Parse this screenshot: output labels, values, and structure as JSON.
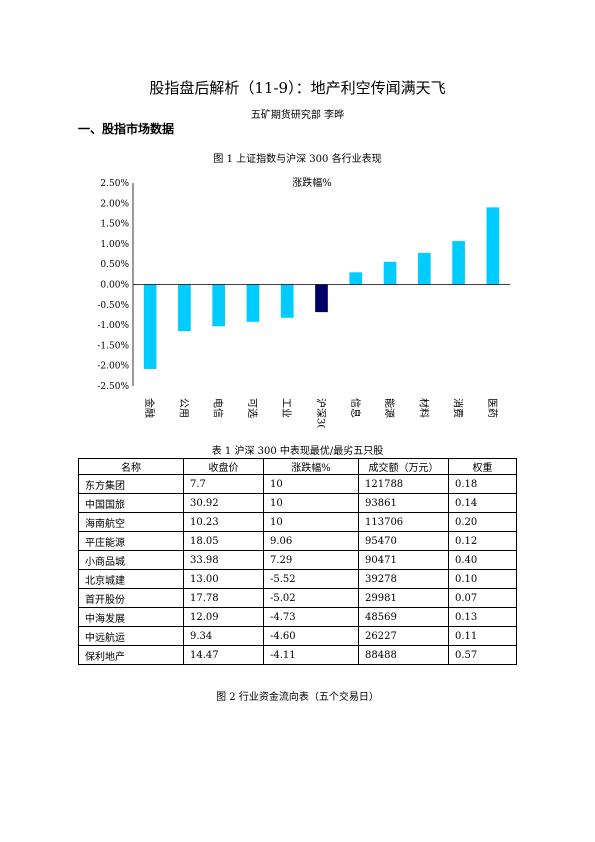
{
  "doc": {
    "title": "股指盘后解析（11-9）：地产利空传闻满天飞",
    "author": "五矿期货研究部    李晔",
    "section1": "一、股指市场数据",
    "figure1_caption": "图 1    上证指数与沪深 300 各行业表现",
    "table1_caption": "表 1    沪深 300 中表现最优/最劣五只股",
    "figure2_caption": "图 2    行业资金流向表（五个交易日）"
  },
  "chart_data": {
    "type": "bar",
    "title": "涨跌幅%",
    "categories": [
      "金融",
      "公用",
      "电信",
      "可选",
      "工业",
      "沪深300",
      "信息",
      "能源",
      "材料",
      "消费",
      "医药"
    ],
    "values": [
      -2.08,
      -1.15,
      -1.03,
      -0.92,
      -0.82,
      -0.68,
      0.3,
      0.56,
      0.78,
      1.07,
      1.9
    ],
    "ylim": [
      -2.5,
      2.5
    ],
    "yticks": [
      "2.50%",
      "2.00%",
      "1.50%",
      "1.00%",
      "0.50%",
      "0.00%",
      "-0.50%",
      "-1.00%",
      "-1.50%",
      "-2.00%",
      "-2.50%"
    ],
    "colors": {
      "default": "#00ccff",
      "highlight": "#000066"
    },
    "highlight_category": "沪深300",
    "grid": false,
    "legend": "none"
  },
  "table": {
    "headers": [
      "名称",
      "收盘价",
      "涨跌幅%",
      "成交额（万元）",
      "权重"
    ],
    "rows": [
      [
        "东方集团",
        "7.7",
        "10",
        "121788",
        "0.18"
      ],
      [
        "中国国旅",
        "30.92",
        "10",
        "93861",
        "0.14"
      ],
      [
        "海南航空",
        "10.23",
        "10",
        "113706",
        "0.20"
      ],
      [
        "平庄能源",
        "18.05",
        "9.06",
        "95470",
        "0.12"
      ],
      [
        "小商品城",
        "33.98",
        "7.29",
        "90471",
        "0.40"
      ],
      [
        "北京城建",
        "13.00",
        "-5.52",
        "39278",
        "0.10"
      ],
      [
        "首开股份",
        "17.78",
        "-5.02",
        "29981",
        "0.07"
      ],
      [
        "中海发展",
        "12.09",
        "-4.73",
        "48569",
        "0.13"
      ],
      [
        "中远航运",
        "9.34",
        "-4.60",
        "26227",
        "0.11"
      ],
      [
        "保利地产",
        "14.47",
        "-4.11",
        "88488",
        "0.57"
      ]
    ]
  }
}
